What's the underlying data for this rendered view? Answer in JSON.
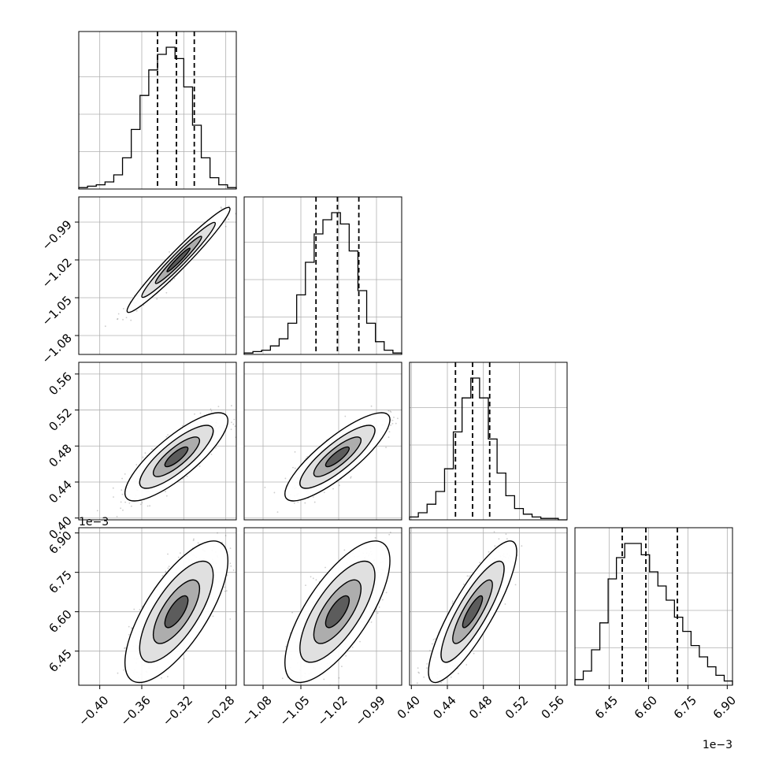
{
  "chart_data": {
    "type": "corner",
    "parameters": [
      {
        "ticks": [
          "−0.40",
          "−0.36",
          "−0.32",
          "−0.28"
        ],
        "tick_values": [
          -0.4,
          -0.36,
          -0.32,
          -0.28
        ],
        "range": [
          -0.42,
          -0.27
        ],
        "quantiles": [
          -0.345,
          -0.327,
          -0.31
        ]
      },
      {
        "ticks": [
          "−1.08",
          "−1.05",
          "−1.02",
          "−0.99"
        ],
        "tick_values": [
          -1.08,
          -1.05,
          -1.02,
          -0.99
        ],
        "range": [
          -1.095,
          -0.97
        ],
        "quantiles": [
          -1.038,
          -1.021,
          -1.004
        ]
      },
      {
        "ticks": [
          "0.40",
          "0.44",
          "0.48",
          "0.52",
          "0.56"
        ],
        "tick_values": [
          0.4,
          0.44,
          0.48,
          0.52,
          0.56
        ],
        "range": [
          0.398,
          0.573
        ],
        "quantiles": [
          0.449,
          0.468,
          0.487
        ]
      },
      {
        "ticks": [
          "6.45",
          "6.60",
          "6.75",
          "6.90"
        ],
        "tick_values": [
          6.45,
          6.6,
          6.75,
          6.9
        ],
        "range": [
          6.32,
          6.92
        ],
        "quantiles": [
          6.5,
          6.59,
          6.71
        ],
        "offset_label": "1e−3"
      }
    ],
    "histograms": [
      [
        0.01,
        0.02,
        0.03,
        0.05,
        0.1,
        0.22,
        0.42,
        0.66,
        0.84,
        0.95,
        1.0,
        0.92,
        0.72,
        0.45,
        0.22,
        0.08,
        0.03,
        0.01
      ],
      [
        0.01,
        0.02,
        0.03,
        0.06,
        0.11,
        0.22,
        0.42,
        0.65,
        0.85,
        0.95,
        1.0,
        0.92,
        0.73,
        0.45,
        0.22,
        0.09,
        0.03,
        0.01
      ],
      [
        0.02,
        0.05,
        0.11,
        0.2,
        0.36,
        0.62,
        0.86,
        1.0,
        0.86,
        0.57,
        0.33,
        0.17,
        0.08,
        0.04,
        0.02,
        0.01,
        0.01,
        0.0
      ],
      [
        0.04,
        0.1,
        0.25,
        0.44,
        0.75,
        0.9,
        1.0,
        1.0,
        0.92,
        0.8,
        0.7,
        0.6,
        0.48,
        0.38,
        0.28,
        0.2,
        0.13,
        0.07,
        0.03
      ]
    ],
    "joint": [
      {
        "row": 1,
        "col": 0,
        "center": [
          -0.325,
          -1.02
        ],
        "sd": [
          0.02,
          0.017
        ],
        "corr": 0.97
      },
      {
        "row": 2,
        "col": 0,
        "center": [
          -0.327,
          0.468
        ],
        "sd": [
          0.02,
          0.02
        ],
        "corr": 0.82
      },
      {
        "row": 2,
        "col": 1,
        "center": [
          -1.021,
          0.468
        ],
        "sd": [
          0.017,
          0.02
        ],
        "corr": 0.84
      },
      {
        "row": 3,
        "col": 0,
        "center": [
          -0.327,
          6.6
        ],
        "sd": [
          0.02,
          0.11
        ],
        "corr": 0.72
      },
      {
        "row": 3,
        "col": 1,
        "center": [
          -1.021,
          6.6
        ],
        "sd": [
          0.017,
          0.11
        ],
        "corr": 0.72
      },
      {
        "row": 3,
        "col": 2,
        "center": [
          0.468,
          6.6
        ],
        "sd": [
          0.02,
          0.11
        ],
        "corr": 0.85
      }
    ],
    "grid": true,
    "colors": {
      "line": "#000000",
      "grid": "#b0b0b0",
      "scatter": "#555555"
    }
  }
}
